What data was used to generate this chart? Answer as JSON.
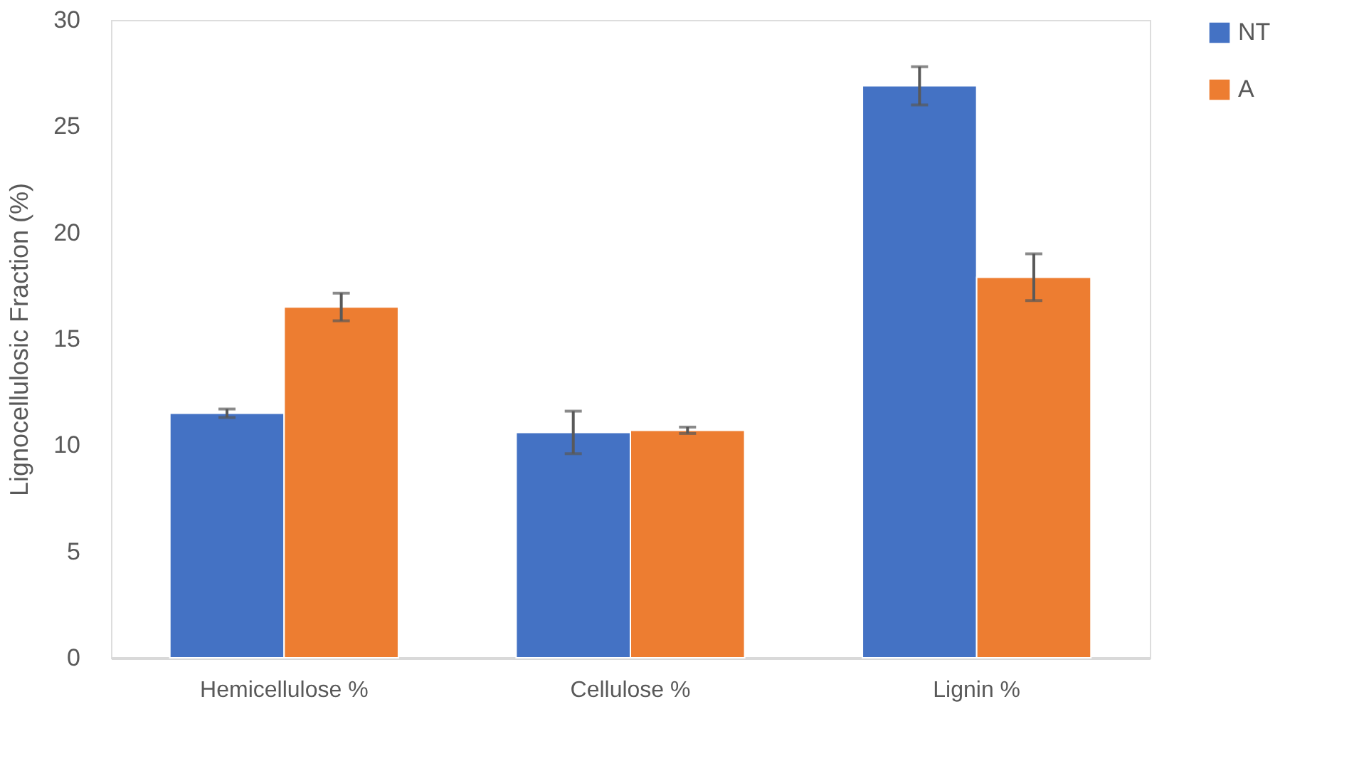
{
  "chart_data": {
    "type": "bar",
    "ylabel": "Lignocellulosic Fraction (%)",
    "categories": [
      "Hemicellulose %",
      "Cellulose %",
      "Lignin %"
    ],
    "series": [
      {
        "name": "NT",
        "color": "#4472c4",
        "values": [
          11.5,
          10.6,
          26.9
        ],
        "errors": [
          0.2,
          1.0,
          0.9
        ]
      },
      {
        "name": "A",
        "color": "#ed7d31",
        "values": [
          16.5,
          10.7,
          17.9
        ],
        "errors": [
          0.65,
          0.15,
          1.1
        ]
      }
    ],
    "ylim": [
      0,
      30
    ],
    "yticks": [
      0,
      5,
      10,
      15,
      20,
      25,
      30
    ],
    "grid": false,
    "legend": "right"
  }
}
